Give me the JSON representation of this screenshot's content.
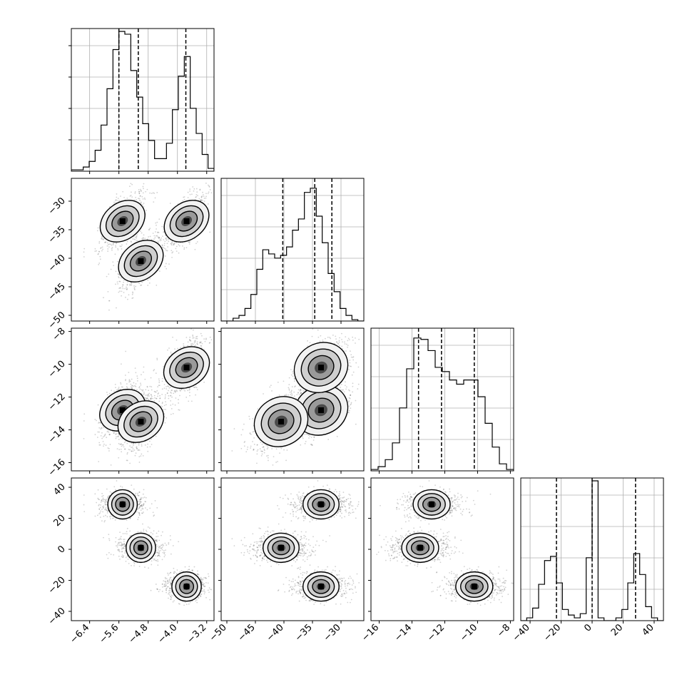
{
  "chart_data": {
    "type": "corner",
    "title": "",
    "grid": true,
    "quantiles_shown": "dashed vertical lines at the 16th, 50th and 84th percentiles",
    "parameters": [
      {
        "label": "",
        "range": [
          -6.9,
          -3.0
        ],
        "ticks": [
          -6.4,
          -5.6,
          -4.8,
          -4.0,
          -3.2
        ],
        "tick_labels": [
          "−6.4",
          "−5.6",
          "−4.8",
          "−4.0",
          "−3.2"
        ],
        "quantiles": [
          -5.6,
          -5.07,
          -3.77
        ],
        "histogram": [
          0.01,
          0.01,
          0.03,
          0.07,
          0.15,
          0.33,
          0.59,
          0.87,
          1.0,
          0.98,
          0.72,
          0.53,
          0.34,
          0.22,
          0.09,
          0.09,
          0.2,
          0.44,
          0.68,
          0.82,
          0.45,
          0.27,
          0.12,
          0.02
        ]
      },
      {
        "label": "",
        "range": [
          -51,
          -26
        ],
        "ticks": [
          -50,
          -45,
          -40,
          -35,
          -30
        ],
        "tick_labels": [
          "−50",
          "−45",
          "−40",
          "−35",
          "−30"
        ],
        "quantiles": [
          -40.2,
          -34.6,
          -31.6
        ],
        "histogram": [
          0.0,
          0.0,
          0.02,
          0.04,
          0.09,
          0.19,
          0.37,
          0.51,
          0.48,
          0.45,
          0.47,
          0.53,
          0.65,
          0.73,
          0.92,
          0.95,
          0.75,
          0.56,
          0.34,
          0.21,
          0.09,
          0.04,
          0.01,
          0.0
        ]
      },
      {
        "label": "",
        "range": [
          -16.5,
          -7.8
        ],
        "ticks": [
          -16,
          -14,
          -12,
          -10,
          -8
        ],
        "tick_labels": [
          "−16",
          "−14",
          "−12",
          "−10",
          "−8"
        ],
        "quantiles": [
          -13.6,
          -12.2,
          -10.2
        ],
        "histogram": [
          0.01,
          0.03,
          0.08,
          0.2,
          0.45,
          0.73,
          0.95,
          0.94,
          0.86,
          0.74,
          0.71,
          0.65,
          0.62,
          0.65,
          0.65,
          0.53,
          0.34,
          0.17,
          0.05,
          0.01
        ]
      },
      {
        "label": "",
        "range": [
          -46,
          46
        ],
        "ticks": [
          -40,
          -20,
          0,
          20,
          40
        ],
        "tick_labels": [
          "−40",
          "−20",
          "0",
          "20",
          "40"
        ],
        "quantiles": [
          -23.0,
          0.0,
          28.0
        ],
        "histogram": [
          0.0,
          0.02,
          0.09,
          0.26,
          0.43,
          0.46,
          0.27,
          0.08,
          0.04,
          0.02,
          0.05,
          0.45,
          1.0,
          0.02,
          0.0,
          0.0,
          0.02,
          0.08,
          0.27,
          0.48,
          0.33,
          0.1,
          0.02,
          0.0
        ]
      }
    ],
    "modes": [
      [
        -5.5,
        -33.5,
        -12.8,
        29.0
      ],
      [
        -5.0,
        -40.5,
        -13.5,
        1.0
      ],
      [
        -3.75,
        -33.5,
        -10.2,
        -24.0
      ]
    ],
    "mode_spreads": [
      0.3,
      2.5,
      0.9,
      4.5
    ]
  }
}
